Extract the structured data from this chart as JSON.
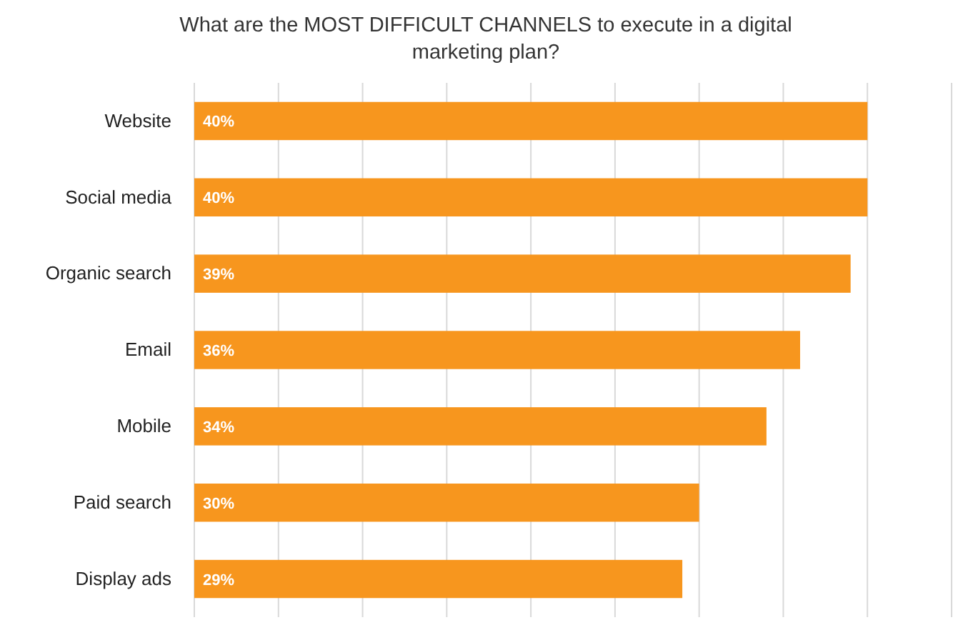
{
  "chart_data": {
    "type": "bar",
    "orientation": "horizontal",
    "title": "What are the MOST DIFFICULT CHANNELS to execute in a digital marketing plan?",
    "categories": [
      "Website",
      "Social media",
      "Organic search",
      "Email",
      "Mobile",
      "Paid search",
      "Display ads"
    ],
    "values": [
      40,
      40,
      39,
      36,
      34,
      30,
      29
    ],
    "value_labels": [
      "40%",
      "40%",
      "39%",
      "36%",
      "34%",
      "30%",
      "29%"
    ],
    "color": "#f7961e",
    "xlim": [
      0,
      45
    ],
    "xticks": [
      {
        "value": 0,
        "label": null
      },
      {
        "value": 5,
        "label": null
      },
      {
        "value": 10,
        "label": null
      },
      {
        "value": 15,
        "label": null
      },
      {
        "value": 20,
        "label": null
      },
      {
        "value": 25,
        "label": null
      },
      {
        "value": 30,
        "label": null
      },
      {
        "value": 35,
        "label": null
      },
      {
        "value": 40,
        "label": null
      },
      {
        "value": 45,
        "label": null
      }
    ],
    "grid": "x",
    "tick_labels": "y"
  }
}
